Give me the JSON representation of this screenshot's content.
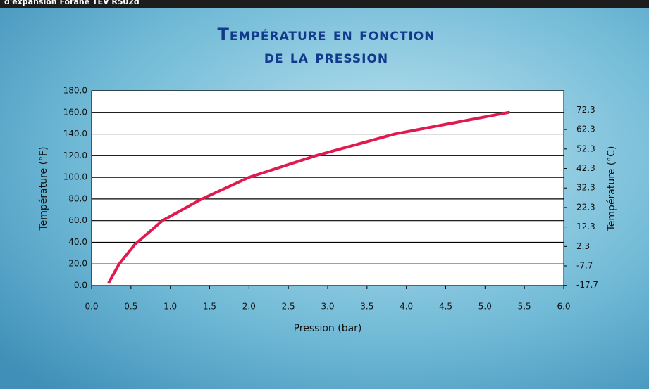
{
  "header": {
    "text": "d'expansion Forane TEV R502d"
  },
  "chart_data": {
    "type": "line",
    "title_lines": [
      "Température en fonction",
      "de la pression"
    ],
    "x_label": "Pression (bar)",
    "y_label": "Température (°F)",
    "y2_label": "Température (°C)",
    "x": [
      0.22,
      0.35,
      0.55,
      0.9,
      1.4,
      2.0,
      2.85,
      3.85,
      5.3
    ],
    "series": [
      {
        "name": "Température",
        "color": "#e0194e",
        "values": [
          3,
          20,
          38,
          60,
          80,
          100,
          120,
          140,
          160
        ]
      }
    ],
    "xlim": [
      0,
      6
    ],
    "xticks": [
      {
        "value": 0,
        "label": "0.0"
      },
      0.5,
      {
        "value": 1,
        "label": "1.0"
      },
      1.5,
      {
        "value": 2,
        "label": "2.0"
      },
      2.5,
      {
        "value": 3,
        "label": "3.0"
      },
      3.5,
      {
        "value": 4,
        "label": "4.0"
      },
      4.5,
      {
        "value": 5,
        "label": "5.0"
      },
      5.5,
      {
        "value": 6,
        "label": "6.0"
      }
    ],
    "ylim": [
      0,
      180
    ],
    "yticks": [
      {
        "value": 0,
        "label": "0.0"
      },
      {
        "value": 20,
        "label": "20.0"
      },
      {
        "value": 40,
        "label": "40.0"
      },
      {
        "value": 60,
        "label": "60.0"
      },
      {
        "value": 80,
        "label": "80.0"
      },
      {
        "value": 100,
        "label": "100.0"
      },
      {
        "value": 120,
        "label": "120.0"
      },
      {
        "value": 140,
        "label": "140.0"
      },
      {
        "value": 160,
        "label": "160.0"
      },
      {
        "value": 180,
        "label": "180.0"
      }
    ],
    "y2lim": [
      -17.8,
      82.2
    ],
    "y2ticks": [
      -17.7,
      -7.7,
      2.3,
      12.3,
      22.3,
      32.3,
      42.3,
      52.3,
      62.3,
      72.3
    ],
    "grid": true
  }
}
